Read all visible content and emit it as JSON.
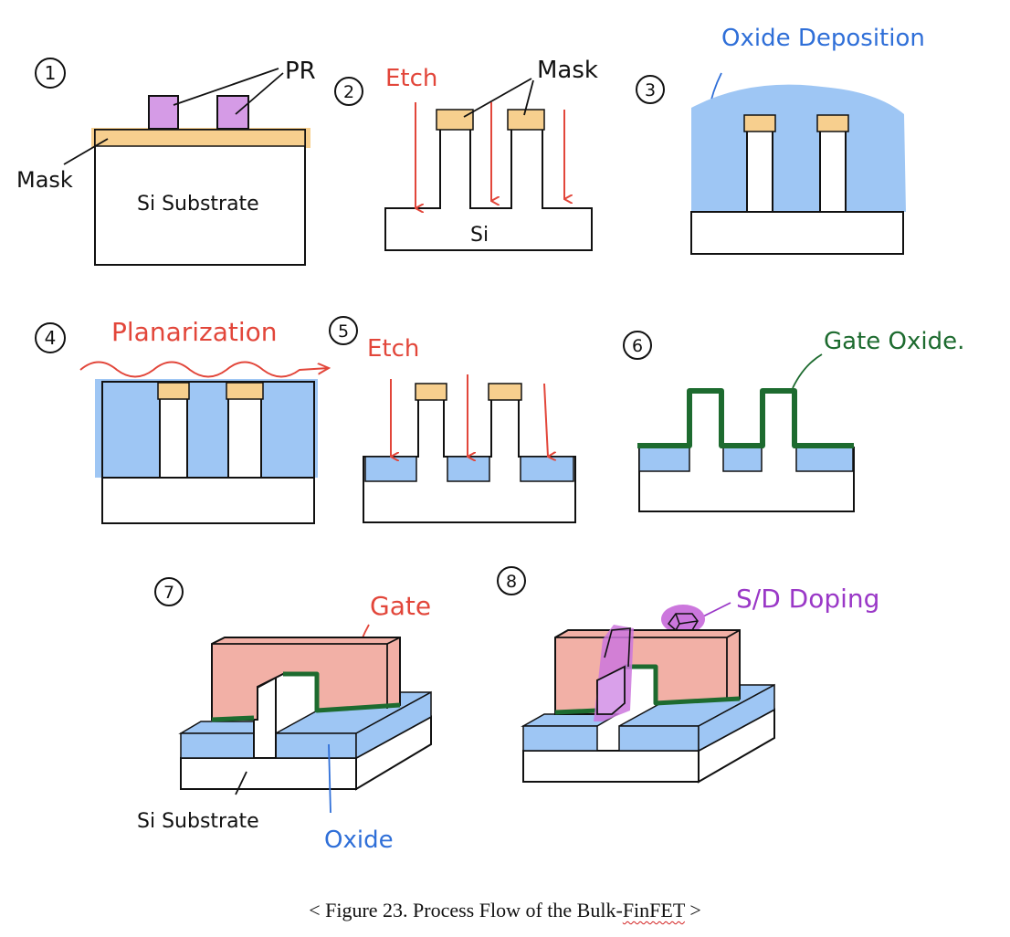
{
  "figure": {
    "caption_prefix": "< Figure 23. Process Flow of the Bulk-",
    "caption_term": "FinFET",
    "caption_suffix": " >"
  },
  "steps": [
    {
      "number": "1",
      "labels": {
        "pr": "PR",
        "mask": "Mask",
        "substrate": "Si Substrate"
      }
    },
    {
      "number": "2",
      "labels": {
        "etch": "Etch",
        "mask": "Mask",
        "si": "Si"
      }
    },
    {
      "number": "3",
      "labels": {
        "deposition": "Oxide Deposition"
      }
    },
    {
      "number": "4",
      "labels": {
        "planarization": "Planarization"
      }
    },
    {
      "number": "5",
      "labels": {
        "etch": "Etch"
      }
    },
    {
      "number": "6",
      "labels": {
        "gate_oxide": "Gate Oxide."
      }
    },
    {
      "number": "7",
      "labels": {
        "gate": "Gate",
        "substrate": "Si Substrate",
        "oxide": "Oxide"
      }
    },
    {
      "number": "8",
      "labels": {
        "doping": "S/D Doping"
      }
    }
  ],
  "colors": {
    "pr": "#d59be6",
    "mask": "#f7cf8e",
    "oxide": "#9ec6f4",
    "gate": "#f2b0a6",
    "gate_oxide": "#1d6b2f",
    "doping": "#cc77dd",
    "etch": "#e2463a",
    "blue_text": "#2f6fd8",
    "purple_text": "#9a38c7",
    "green_text": "#1d6b2f"
  }
}
